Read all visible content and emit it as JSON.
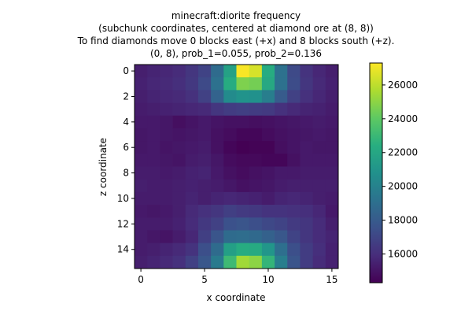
{
  "chart_data": {
    "type": "heatmap",
    "title_lines": [
      "minecraft:diorite frequency",
      "(subchunk coordinates, centered at diamond ore at (8, 8))",
      "To find diamonds move 0 blocks east (+x) and 8 blocks south (+z).",
      "(0, 8), prob_1=0.055, prob_2=0.136"
    ],
    "xlabel": "x coordinate",
    "ylabel": "z coordinate",
    "x_ticks": [
      0,
      5,
      10,
      15
    ],
    "y_ticks": [
      0,
      2,
      4,
      6,
      8,
      10,
      12,
      14
    ],
    "colormap": "viridis",
    "colorbar_range": [
      14300,
      27300
    ],
    "colorbar_ticks": [
      16000,
      18000,
      20000,
      22000,
      24000,
      26000
    ],
    "z_values": [
      [
        15400,
        15600,
        15700,
        15900,
        16300,
        16900,
        18800,
        21700,
        27200,
        26500,
        22300,
        19100,
        17200,
        16200,
        15700,
        15400
      ],
      [
        15500,
        15700,
        15800,
        16000,
        16400,
        17200,
        19100,
        22300,
        24700,
        24500,
        22100,
        19100,
        17300,
        16300,
        15800,
        15500
      ],
      [
        15400,
        15600,
        15700,
        15800,
        16100,
        16800,
        18400,
        20500,
        20900,
        20800,
        19800,
        18000,
        16800,
        16100,
        15700,
        15400
      ],
      [
        15300,
        15400,
        15500,
        15600,
        15700,
        15800,
        16300,
        16600,
        16700,
        16600,
        16500,
        16100,
        15800,
        15600,
        15500,
        15300
      ],
      [
        15200,
        15200,
        15100,
        14800,
        15000,
        15200,
        15000,
        14900,
        14900,
        14800,
        14900,
        15000,
        15100,
        15200,
        15300,
        15200
      ],
      [
        15100,
        15200,
        15100,
        15000,
        15100,
        15200,
        14900,
        14700,
        14500,
        14500,
        14700,
        14900,
        15000,
        15100,
        15200,
        15100
      ],
      [
        15100,
        15200,
        15000,
        15100,
        15200,
        15300,
        14900,
        14500,
        14300,
        14400,
        14400,
        14800,
        15000,
        15200,
        15100,
        15100
      ],
      [
        15200,
        15200,
        15100,
        15000,
        15300,
        15400,
        15100,
        14700,
        14600,
        14600,
        14500,
        14500,
        14900,
        15200,
        15200,
        15200
      ],
      [
        15300,
        15300,
        15200,
        15300,
        15500,
        15600,
        15200,
        14900,
        14700,
        14900,
        15000,
        15200,
        15200,
        15300,
        15300,
        15300
      ],
      [
        15400,
        15300,
        15300,
        15400,
        15500,
        15400,
        15300,
        15100,
        14900,
        15000,
        15100,
        15300,
        15400,
        15400,
        15400,
        15400
      ],
      [
        15300,
        15300,
        15300,
        15400,
        15600,
        15400,
        15600,
        15700,
        15600,
        15500,
        15300,
        15600,
        15700,
        15600,
        15400,
        15300
      ],
      [
        15200,
        15100,
        15200,
        15400,
        15800,
        16100,
        16300,
        16700,
        16500,
        16400,
        16200,
        16200,
        16100,
        16000,
        15700,
        15200
      ],
      [
        15300,
        15300,
        15300,
        15500,
        15900,
        16400,
        16800,
        17500,
        17700,
        17400,
        17100,
        16900,
        16500,
        16300,
        15900,
        15400
      ],
      [
        15300,
        15100,
        15000,
        15300,
        15700,
        16700,
        17700,
        18800,
        18900,
        18700,
        18300,
        17800,
        16900,
        16300,
        15900,
        15600
      ],
      [
        15300,
        15400,
        15600,
        15800,
        16200,
        17400,
        18800,
        21600,
        22300,
        22200,
        21100,
        19000,
        17400,
        16600,
        16000,
        15500
      ],
      [
        15400,
        15600,
        15800,
        16100,
        16800,
        17800,
        19600,
        23100,
        25400,
        25000,
        22800,
        19800,
        17700,
        16600,
        15900,
        15500
      ]
    ]
  }
}
